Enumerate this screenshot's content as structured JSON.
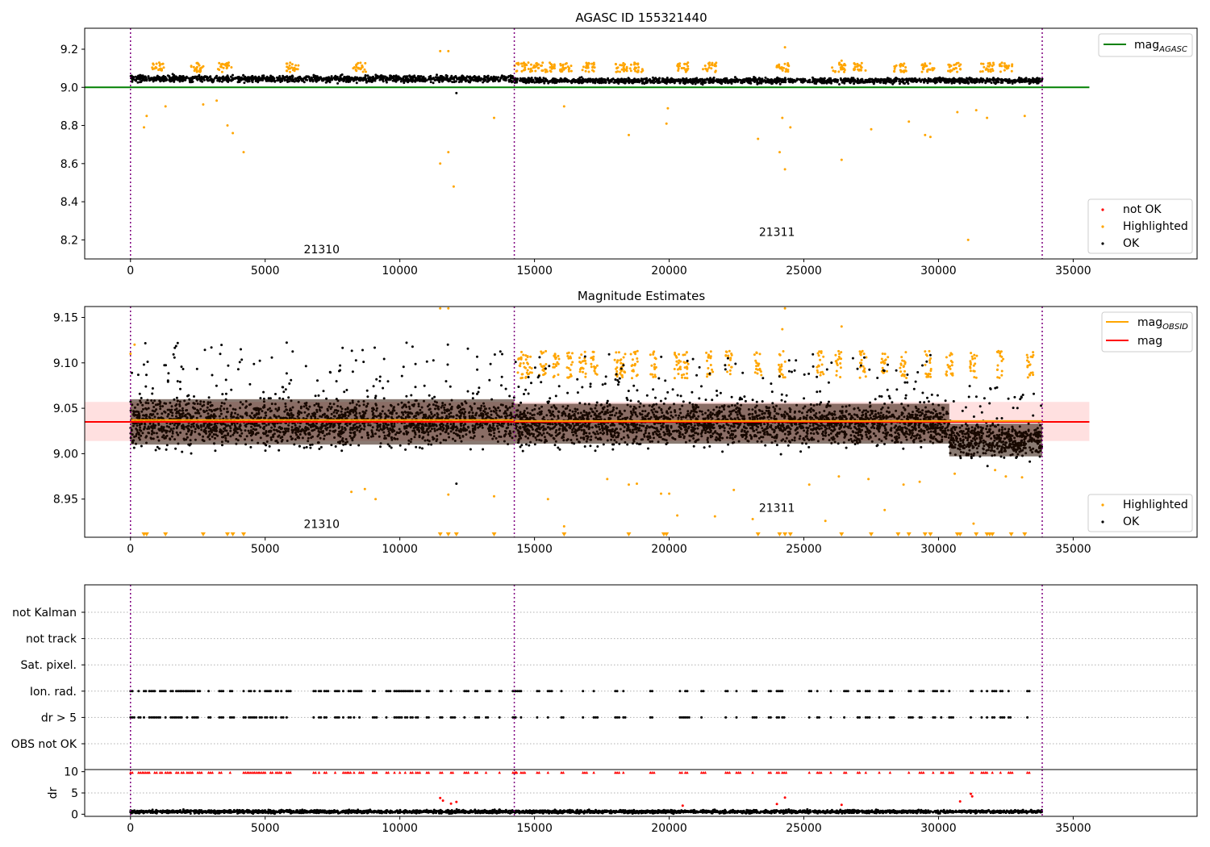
{
  "chart_data": [
    {
      "type": "scatter",
      "title": "AGASC ID 155321440",
      "xlim": [
        -1700,
        39600
      ],
      "ylim": [
        8.1,
        9.31
      ],
      "x_ticks": [
        0,
        5000,
        10000,
        15000,
        20000,
        25000,
        30000,
        35000
      ],
      "y_ticks": [
        8.2,
        8.4,
        8.6,
        8.8,
        9.0,
        9.2
      ],
      "y_tick_decimals": 1,
      "obsid_boundaries": [
        0,
        14250,
        33850
      ],
      "obsid_labels": [
        {
          "text": "21310",
          "x": 7100,
          "y": 8.13
        },
        {
          "text": "21311",
          "x": 24000,
          "y": 8.22
        }
      ],
      "reference_lines": [
        {
          "name": "mag",
          "subscript": "AGASC",
          "value": 9.0,
          "x_range": [
            -1700,
            35600
          ],
          "color": "#008000"
        }
      ],
      "ok_band": {
        "segments": [
          {
            "x": [
              0,
              14250
            ],
            "center": 9.045,
            "spread": 0.03
          },
          {
            "x": [
              14250,
              33850
            ],
            "center": 9.035,
            "spread": 0.025
          }
        ]
      },
      "highlighted_upper_clusters": [
        1000,
        2500,
        3500,
        6000,
        8500,
        14500,
        15000,
        15500,
        16200,
        17000,
        18200,
        18800,
        20500,
        21500,
        24200,
        26300,
        27100,
        28600,
        29600,
        30600,
        31800,
        32500
      ],
      "highlighted_points": [
        [
          500,
          8.79
        ],
        [
          600,
          8.85
        ],
        [
          1300,
          8.9
        ],
        [
          2700,
          8.91
        ],
        [
          3200,
          8.93
        ],
        [
          3600,
          8.8
        ],
        [
          3800,
          8.76
        ],
        [
          4200,
          8.66
        ],
        [
          11500,
          8.6
        ],
        [
          11800,
          8.66
        ],
        [
          12000,
          8.48
        ],
        [
          13500,
          8.84
        ],
        [
          11500,
          9.19
        ],
        [
          11800,
          9.19
        ],
        [
          16100,
          8.9
        ],
        [
          18500,
          8.75
        ],
        [
          19900,
          8.81
        ],
        [
          19950,
          8.89
        ],
        [
          23300,
          8.73
        ],
        [
          24100,
          8.66
        ],
        [
          24200,
          8.84
        ],
        [
          24300,
          8.57
        ],
        [
          24500,
          8.79
        ],
        [
          26400,
          8.62
        ],
        [
          27500,
          8.78
        ],
        [
          28900,
          8.82
        ],
        [
          29500,
          8.75
        ],
        [
          29700,
          8.74
        ],
        [
          30700,
          8.87
        ],
        [
          31100,
          8.2
        ],
        [
          31400,
          8.88
        ],
        [
          31800,
          8.84
        ],
        [
          33200,
          8.85
        ],
        [
          24300,
          9.21
        ],
        [
          26400,
          9.14
        ]
      ],
      "ok_outliers": [
        [
          12100,
          8.97
        ]
      ],
      "legends": [
        {
          "entries": [
            {
              "label": "mag",
              "subscript": "AGASC"
            }
          ],
          "position": "upper-right"
        },
        {
          "entries": [
            {
              "label": "not OK",
              "color": "#ff0000"
            },
            {
              "label": "Highlighted",
              "color": "#ffa500"
            },
            {
              "label": "OK",
              "color": "#000000"
            }
          ],
          "position": "lower-right"
        }
      ]
    },
    {
      "type": "scatter",
      "title": "Magnitude Estimates",
      "xlim": [
        -1700,
        39600
      ],
      "ylim": [
        8.908,
        9.162
      ],
      "x_ticks": [
        0,
        5000,
        10000,
        15000,
        20000,
        25000,
        30000,
        35000
      ],
      "y_ticks": [
        8.95,
        9.0,
        9.05,
        9.1,
        9.15
      ],
      "y_tick_decimals": 2,
      "obsid_boundaries": [
        0,
        14250,
        33850
      ],
      "obsid_labels": [
        {
          "text": "21310",
          "x": 7100,
          "y": 8.918
        },
        {
          "text": "21311",
          "x": 24000,
          "y": 8.936
        }
      ],
      "obsid_mag_segments": [
        {
          "x": [
            0,
            14250
          ],
          "value": 9.037
        },
        {
          "x": [
            14250,
            33850
          ],
          "value": 9.036
        }
      ],
      "mag_line": {
        "value": 9.035,
        "x_range": [
          -1700,
          35600
        ],
        "band": [
          9.014,
          9.057
        ]
      },
      "ok_band": {
        "segments": [
          {
            "x": [
              0,
              14250
            ],
            "center": 9.035,
            "spread": 0.025
          },
          {
            "x": [
              14250,
              30400
            ],
            "center": 9.033,
            "spread": 0.022
          },
          {
            "x": [
              30400,
              33850
            ],
            "center": 9.015,
            "spread": 0.018
          }
        ]
      },
      "highlighted_upper_clusters": [
        14500,
        14800,
        15300,
        15800,
        16300,
        16800,
        17200,
        18100,
        18300,
        18700,
        19400,
        20300,
        20600,
        21500,
        22200,
        23300,
        24200,
        25600,
        26300,
        27200,
        28000,
        28700,
        29600,
        30400,
        31300,
        32300,
        33400
      ],
      "highlighted_points": [
        [
          0,
          9.11
        ],
        [
          150,
          9.12
        ],
        [
          11500,
          9.16
        ],
        [
          11800,
          9.16
        ],
        [
          24300,
          9.16
        ],
        [
          24200,
          9.137
        ],
        [
          26400,
          9.14
        ],
        [
          8200,
          8.958
        ],
        [
          8700,
          8.961
        ],
        [
          9100,
          8.95
        ],
        [
          11800,
          8.955
        ],
        [
          13500,
          8.953
        ],
        [
          15500,
          8.95
        ],
        [
          16100,
          8.92
        ],
        [
          17700,
          8.972
        ],
        [
          18500,
          8.966
        ],
        [
          18800,
          8.967
        ],
        [
          19700,
          8.956
        ],
        [
          20000,
          8.956
        ],
        [
          20300,
          8.932
        ],
        [
          21700,
          8.931
        ],
        [
          22400,
          8.96
        ],
        [
          23100,
          8.928
        ],
        [
          25200,
          8.966
        ],
        [
          25800,
          8.926
        ],
        [
          26300,
          8.975
        ],
        [
          27400,
          8.972
        ],
        [
          28000,
          8.938
        ],
        [
          28700,
          8.966
        ],
        [
          29300,
          8.969
        ],
        [
          30600,
          8.978
        ],
        [
          31300,
          8.923
        ],
        [
          32100,
          8.982
        ],
        [
          32500,
          8.975
        ],
        [
          33100,
          8.974
        ]
      ],
      "highlighted_floor_markers": [
        500,
        600,
        1300,
        2700,
        3600,
        3800,
        4200,
        11500,
        11800,
        12100,
        13500,
        16100,
        18500,
        19800,
        19900,
        23300,
        24100,
        24300,
        24500,
        26400,
        27500,
        28500,
        28900,
        29500,
        29700,
        30700,
        30800,
        31400,
        31800,
        31900,
        32000,
        32700,
        33200
      ],
      "ok_outliers": [
        [
          12100,
          8.967
        ]
      ],
      "legends": [
        {
          "entries": [
            {
              "label": "mag",
              "subscript": "OBSID",
              "color": "#ffa500"
            },
            {
              "label": "mag",
              "color": "#ff0000"
            }
          ],
          "position": "upper-right"
        },
        {
          "entries": [
            {
              "label": "Highlighted",
              "color": "#ffa500"
            },
            {
              "label": "OK",
              "color": "#000000"
            }
          ],
          "position": "lower-right"
        }
      ]
    },
    {
      "type": "scatter",
      "xlim": [
        -1700,
        39600
      ],
      "categories": [
        "not Kalman",
        "not track",
        "Sat. pixel.",
        "Ion. rad.",
        "dr > 5",
        "OBS not OK"
      ],
      "obsid_boundaries": [
        0,
        14250,
        33850
      ],
      "flagged_times": [
        0,
        300,
        500,
        700,
        900,
        1100,
        1300,
        1500,
        1700,
        1900,
        2100,
        2300,
        2500,
        2900,
        3300,
        3700,
        4200,
        4400,
        4600,
        4800,
        5000,
        5200,
        5400,
        5600,
        5800,
        6800,
        7000,
        7200,
        7600,
        7900,
        8100,
        8300,
        8500,
        9000,
        9500,
        9800,
        10000,
        10200,
        10400,
        10600,
        11000,
        11500,
        11900,
        12400,
        12800,
        13200,
        13700,
        14200,
        14300,
        14500,
        15100,
        15500,
        16000,
        16800,
        17200,
        18000,
        18300,
        19300,
        20400,
        20600,
        21200,
        22100,
        22500,
        23100,
        23700,
        24000,
        24200,
        25200,
        25500,
        26000,
        26500,
        27000,
        27300,
        27800,
        28200,
        28900,
        29300,
        29800,
        30100,
        30400,
        31200,
        31600,
        31800,
        32000,
        32300,
        32600,
        33300
      ]
    },
    {
      "type": "scatter",
      "xlim": [
        -1700,
        39600
      ],
      "ylim": [
        -0.5,
        10.5
      ],
      "ylabel": "dr",
      "y_ticks": [
        0,
        5,
        10
      ],
      "obsid_boundaries": [
        0,
        14250,
        33850
      ],
      "dr_band": {
        "center": 0.6,
        "spread": 0.35
      },
      "dr_outliers": [
        [
          11500,
          3.8
        ],
        [
          11600,
          3.2
        ],
        [
          11900,
          2.5
        ],
        [
          12100,
          2.9
        ],
        [
          24300,
          3.9
        ],
        [
          24000,
          2.4
        ],
        [
          30800,
          3.0
        ],
        [
          31200,
          4.8
        ],
        [
          31250,
          4.2
        ],
        [
          20500,
          2.0
        ],
        [
          26400,
          2.2
        ]
      ],
      "capped_value": 9.8
    }
  ]
}
